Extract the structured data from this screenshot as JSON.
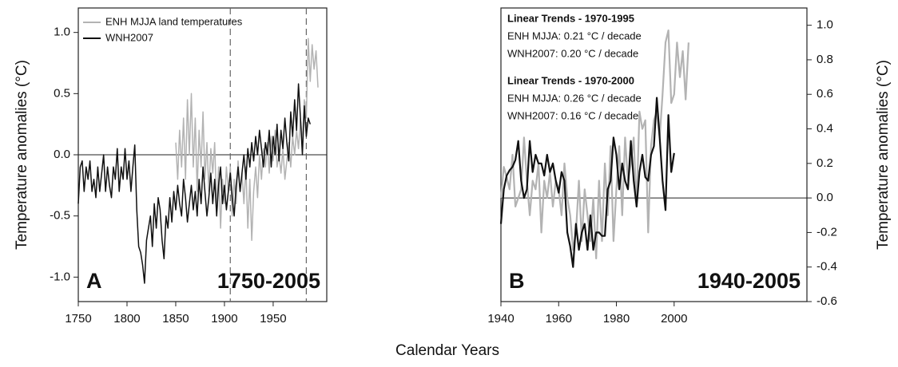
{
  "chart_data": [
    {
      "type": "line",
      "xlabel": "Calendar Years",
      "ylabel": "Temperature anomalies (°C)",
      "y_axis_side": "left",
      "panel_label": "A",
      "period_label": "1750-2005",
      "legend": "upper left",
      "xlim": [
        1750,
        2005
      ],
      "xticks": [
        1750,
        1800,
        1850,
        1900,
        1950
      ],
      "ylim": [
        -1.2,
        1.2
      ],
      "yticks": [
        {
          "value": -1,
          "label": "-1.0"
        },
        -0.5,
        {
          "value": 0,
          "label": "0.0"
        },
        0.5,
        {
          "value": 1,
          "label": "1.0"
        }
      ],
      "reference_lines": [
        1906,
        1984
      ],
      "series": [
        {
          "name": "ENH MJJA land temperatures",
          "color": "#b3b3b3",
          "x": [
            1850,
            1852,
            1854,
            1856,
            1858,
            1860,
            1862,
            1864,
            1866,
            1868,
            1870,
            1872,
            1874,
            1876,
            1878,
            1880,
            1882,
            1884,
            1886,
            1888,
            1890,
            1892,
            1894,
            1896,
            1898,
            1900,
            1902,
            1904,
            1906,
            1908,
            1910,
            1912,
            1914,
            1916,
            1918,
            1920,
            1922,
            1924,
            1926,
            1928,
            1930,
            1932,
            1934,
            1936,
            1938,
            1940,
            1942,
            1944,
            1946,
            1948,
            1950,
            1952,
            1954,
            1956,
            1958,
            1960,
            1962,
            1964,
            1966,
            1968,
            1970,
            1972,
            1974,
            1976,
            1978,
            1980,
            1982,
            1984,
            1986,
            1988,
            1990,
            1992,
            1994,
            1996
          ],
          "values": [
            0.1,
            -0.2,
            0.2,
            -0.1,
            0.3,
            -0.2,
            0.45,
            0.0,
            0.5,
            -0.1,
            0.3,
            -0.3,
            0.2,
            -0.1,
            0.35,
            -0.2,
            0.1,
            -0.3,
            0.05,
            -0.15,
            0.1,
            -0.45,
            -0.1,
            -0.6,
            -0.2,
            -0.4,
            -0.1,
            -0.3,
            -0.1,
            -0.5,
            -0.2,
            -0.4,
            -0.05,
            -0.3,
            -0.15,
            -0.4,
            -0.1,
            -0.6,
            -0.2,
            -0.7,
            -0.3,
            -0.1,
            -0.35,
            0.0,
            -0.2,
            0.05,
            -0.1,
            0.1,
            -0.15,
            0.15,
            -0.05,
            0.2,
            -0.1,
            0.0,
            -0.15,
            0.05,
            -0.2,
            -0.05,
            0.1,
            -0.1,
            0.15,
            0.0,
            0.2,
            0.05,
            0.3,
            0.1,
            0.45,
            0.3,
            0.95,
            0.6,
            0.9,
            0.7,
            0.85,
            0.55
          ]
        },
        {
          "name": "WNH2007",
          "color": "#111111",
          "x": [
            1750,
            1752,
            1754,
            1756,
            1758,
            1760,
            1762,
            1764,
            1766,
            1768,
            1770,
            1772,
            1774,
            1776,
            1778,
            1780,
            1782,
            1784,
            1786,
            1788,
            1790,
            1792,
            1794,
            1796,
            1798,
            1800,
            1802,
            1804,
            1806,
            1808,
            1810,
            1812,
            1814,
            1816,
            1818,
            1820,
            1822,
            1824,
            1826,
            1828,
            1830,
            1832,
            1834,
            1836,
            1838,
            1840,
            1842,
            1844,
            1846,
            1848,
            1850,
            1852,
            1854,
            1856,
            1858,
            1860,
            1862,
            1864,
            1866,
            1868,
            1870,
            1872,
            1874,
            1876,
            1878,
            1880,
            1882,
            1884,
            1886,
            1888,
            1890,
            1892,
            1894,
            1896,
            1898,
            1900,
            1902,
            1904,
            1906,
            1908,
            1910,
            1912,
            1914,
            1916,
            1918,
            1920,
            1922,
            1924,
            1926,
            1928,
            1930,
            1932,
            1934,
            1936,
            1938,
            1940,
            1942,
            1944,
            1946,
            1948,
            1950,
            1952,
            1954,
            1956,
            1958,
            1960,
            1962,
            1964,
            1966,
            1968,
            1970,
            1972,
            1974,
            1976,
            1978,
            1980,
            1982,
            1984,
            1986,
            1988
          ],
          "values": [
            -0.4,
            -0.1,
            -0.05,
            -0.3,
            -0.1,
            -0.2,
            -0.05,
            -0.3,
            -0.2,
            -0.35,
            -0.1,
            -0.3,
            -0.15,
            0.0,
            -0.3,
            -0.1,
            -0.25,
            -0.35,
            -0.1,
            -0.2,
            0.05,
            -0.3,
            -0.1,
            -0.2,
            0.05,
            -0.2,
            -0.05,
            -0.3,
            -0.1,
            0.08,
            -0.45,
            -0.75,
            -0.8,
            -0.9,
            -1.05,
            -0.7,
            -0.6,
            -0.5,
            -0.75,
            -0.4,
            -0.6,
            -0.35,
            -0.45,
            -0.7,
            -0.85,
            -0.5,
            -0.6,
            -0.35,
            -0.55,
            -0.3,
            -0.45,
            -0.25,
            -0.4,
            -0.5,
            -0.2,
            -0.35,
            -0.55,
            -0.4,
            -0.25,
            -0.45,
            -0.3,
            -0.5,
            -0.2,
            -0.4,
            -0.1,
            -0.3,
            -0.5,
            -0.35,
            -0.15,
            -0.4,
            -0.2,
            -0.5,
            -0.25,
            -0.1,
            -0.4,
            -0.25,
            -0.45,
            -0.3,
            -0.15,
            -0.35,
            -0.5,
            -0.25,
            -0.1,
            -0.3,
            -0.15,
            0.0,
            -0.2,
            0.05,
            -0.1,
            0.1,
            -0.05,
            0.15,
            0.0,
            0.2,
            0.05,
            -0.1,
            0.1,
            0.0,
            0.2,
            -0.1,
            0.15,
            0.0,
            0.25,
            -0.05,
            0.2,
            0.05,
            0.3,
            0.1,
            -0.05,
            0.35,
            0.15,
            0.45,
            0.2,
            0.58,
            0.3,
            0.0,
            0.4,
            0.15,
            0.3,
            0.25
          ]
        }
      ]
    },
    {
      "type": "line",
      "ylabel": "Temperature anomalies (°C)",
      "y_axis_side": "right",
      "panel_label": "B",
      "period_label": "1940-2005",
      "xlim": [
        1940,
        2046
      ],
      "xticks": [
        1940,
        1960,
        1980,
        2000
      ],
      "ylim": [
        -0.6,
        1.1
      ],
      "yticks": [
        -0.6,
        -0.4,
        -0.2,
        {
          "value": 0,
          "label": "0.0"
        },
        0.2,
        0.4,
        0.6,
        0.8,
        {
          "value": 1,
          "label": "1.0"
        }
      ],
      "annotations": [
        {
          "text": "Linear Trends - 1970-1995",
          "bold": true
        },
        {
          "text": "ENH MJJA: 0.21 °C / decade",
          "bold": false
        },
        {
          "text": "WNH2007: 0.20 °C / decade",
          "bold": false
        },
        {
          "text": "Linear Trends - 1970-2000",
          "bold": true
        },
        {
          "text": "ENH MJJA: 0.26 °C / decade",
          "bold": false
        },
        {
          "text": "WNH2007: 0.16 °C / decade",
          "bold": false
        }
      ],
      "series": [
        {
          "name": "ENH MJJA land temperatures",
          "color": "#b3b3b3",
          "x": [
            1940,
            1941,
            1942,
            1943,
            1944,
            1945,
            1946,
            1947,
            1948,
            1949,
            1950,
            1951,
            1952,
            1953,
            1954,
            1955,
            1956,
            1957,
            1958,
            1959,
            1960,
            1961,
            1962,
            1963,
            1964,
            1965,
            1966,
            1967,
            1968,
            1969,
            1970,
            1971,
            1972,
            1973,
            1974,
            1975,
            1976,
            1977,
            1978,
            1979,
            1980,
            1981,
            1982,
            1983,
            1984,
            1985,
            1986,
            1987,
            1988,
            1989,
            1990,
            1991,
            1992,
            1993,
            1994,
            1995,
            1996,
            1997,
            1998,
            1999,
            2000,
            2001,
            2002,
            2003,
            2004,
            2005
          ],
          "values": [
            0.0,
            0.18,
            0.12,
            0.05,
            0.25,
            -0.05,
            0.0,
            0.05,
            0.35,
            0.1,
            -0.1,
            0.1,
            0.05,
            0.2,
            -0.2,
            0.1,
            0.0,
            0.15,
            -0.05,
            0.1,
            0.05,
            -0.1,
            0.2,
            0.0,
            -0.1,
            -0.3,
            -0.2,
            0.1,
            -0.25,
            0.05,
            -0.1,
            -0.25,
            0.0,
            -0.35,
            0.1,
            -0.25,
            0.2,
            -0.1,
            0.3,
            -0.25,
            0.05,
            0.3,
            -0.1,
            0.35,
            0.1,
            0.2,
            0.35,
            -0.05,
            0.5,
            0.4,
            0.45,
            -0.2,
            0.3,
            0.45,
            0.5,
            0.35,
            0.6,
            0.9,
            0.97,
            0.55,
            0.6,
            0.9,
            0.7,
            0.85,
            0.57,
            0.9
          ]
        },
        {
          "name": "WNH2007",
          "color": "#111111",
          "x": [
            1940,
            1941,
            1942,
            1943,
            1944,
            1945,
            1946,
            1947,
            1948,
            1949,
            1950,
            1951,
            1952,
            1953,
            1954,
            1955,
            1956,
            1957,
            1958,
            1959,
            1960,
            1961,
            1962,
            1963,
            1964,
            1965,
            1966,
            1967,
            1968,
            1969,
            1970,
            1971,
            1972,
            1973,
            1974,
            1975,
            1976,
            1977,
            1978,
            1979,
            1980,
            1981,
            1982,
            1983,
            1984,
            1985,
            1986,
            1987,
            1988,
            1989,
            1990,
            1991,
            1992,
            1993,
            1994,
            1995,
            1996,
            1997,
            1998,
            1999,
            2000
          ],
          "values": [
            -0.15,
            0.05,
            0.13,
            0.16,
            0.18,
            0.22,
            0.33,
            0.1,
            0.0,
            0.05,
            0.33,
            0.15,
            0.25,
            0.2,
            0.2,
            0.13,
            0.25,
            0.15,
            0.2,
            0.1,
            0.03,
            0.15,
            0.1,
            -0.2,
            -0.28,
            -0.4,
            -0.15,
            -0.3,
            -0.2,
            -0.15,
            -0.3,
            -0.1,
            -0.3,
            -0.2,
            -0.2,
            -0.22,
            -0.22,
            0.05,
            0.1,
            0.35,
            0.25,
            0.05,
            0.2,
            0.1,
            0.05,
            0.33,
            0.1,
            -0.05,
            0.15,
            0.25,
            0.12,
            0.1,
            0.25,
            0.3,
            0.58,
            0.35,
            0.1,
            -0.07,
            0.48,
            0.15,
            0.26
          ]
        }
      ]
    }
  ]
}
